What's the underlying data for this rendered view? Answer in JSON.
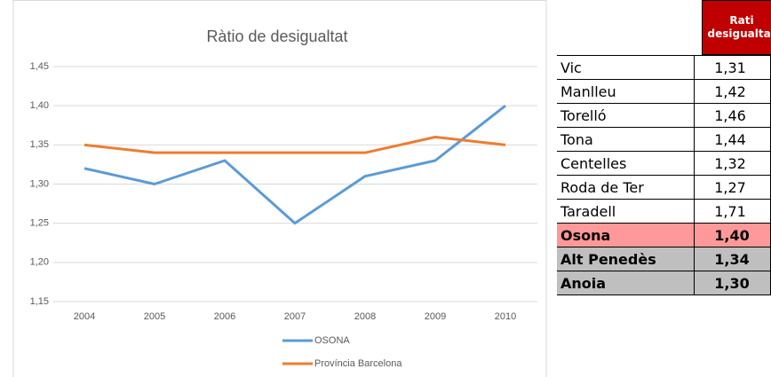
{
  "chart_data": {
    "type": "line",
    "title": "Ràtio de desigualtat",
    "categories": [
      "2004",
      "2005",
      "2006",
      "2007",
      "2008",
      "2009",
      "2010"
    ],
    "series": [
      {
        "name": "OSONA",
        "color": "#5b9bd5",
        "values": [
          1.32,
          1.3,
          1.33,
          1.25,
          1.31,
          1.33,
          1.4
        ]
      },
      {
        "name": "Província Barcelona",
        "color": "#ed7d31",
        "values": [
          1.35,
          1.34,
          1.34,
          1.34,
          1.34,
          1.36,
          1.35
        ]
      }
    ],
    "ylim": [
      1.15,
      1.45
    ],
    "yticks": [
      {
        "value": 1.15,
        "label": "1,15"
      },
      {
        "value": 1.2,
        "label": "1,20"
      },
      {
        "value": 1.25,
        "label": "1,25"
      },
      {
        "value": 1.3,
        "label": "1,30"
      },
      {
        "value": 1.35,
        "label": "1,35"
      },
      {
        "value": 1.4,
        "label": "1,40"
      },
      {
        "value": 1.45,
        "label": "1,45"
      }
    ],
    "grid": true,
    "legend": "bottom"
  },
  "table": {
    "header": "Rati desigualtat",
    "rows": [
      [
        "Vic",
        "1,31"
      ],
      [
        "Manlleu",
        "1,42"
      ],
      [
        "Torelló",
        "1,46"
      ],
      [
        "Tona",
        "1,44"
      ],
      [
        "Centelles",
        "1,32"
      ],
      [
        "Roda de Ter",
        "1,27"
      ],
      [
        "Taradell",
        "1,71"
      ],
      [
        "Osona",
        "1,40"
      ],
      [
        "Alt Penedès",
        "1,34"
      ],
      [
        "Anoia",
        "1,30"
      ]
    ]
  }
}
